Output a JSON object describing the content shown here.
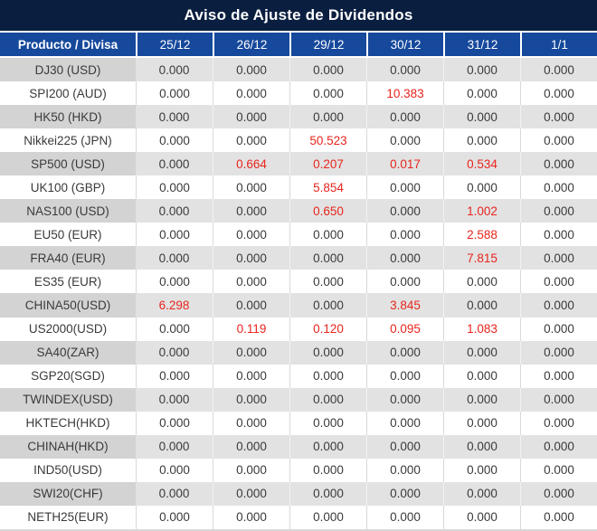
{
  "title": "Aviso de Ajuste de Dividendos",
  "table": {
    "product_header": "Producto / Divisa",
    "date_headers": [
      "25/12",
      "26/12",
      "29/12",
      "30/12",
      "31/12",
      "1/1"
    ],
    "rows": [
      {
        "product": "DJ30 (USD)",
        "values": [
          "0.000",
          "0.000",
          "0.000",
          "0.000",
          "0.000",
          "0.000"
        ],
        "red": [
          false,
          false,
          false,
          false,
          false,
          false
        ]
      },
      {
        "product": "SPI200 (AUD)",
        "values": [
          "0.000",
          "0.000",
          "0.000",
          "10.383",
          "0.000",
          "0.000"
        ],
        "red": [
          false,
          false,
          false,
          true,
          false,
          false
        ]
      },
      {
        "product": "HK50 (HKD)",
        "values": [
          "0.000",
          "0.000",
          "0.000",
          "0.000",
          "0.000",
          "0.000"
        ],
        "red": [
          false,
          false,
          false,
          false,
          false,
          false
        ]
      },
      {
        "product": "Nikkei225 (JPN)",
        "values": [
          "0.000",
          "0.000",
          "50.523",
          "0.000",
          "0.000",
          "0.000"
        ],
        "red": [
          false,
          false,
          true,
          false,
          false,
          false
        ]
      },
      {
        "product": "SP500 (USD)",
        "values": [
          "0.000",
          "0.664",
          "0.207",
          "0.017",
          "0.534",
          "0.000"
        ],
        "red": [
          false,
          true,
          true,
          true,
          true,
          false
        ]
      },
      {
        "product": "UK100 (GBP)",
        "values": [
          "0.000",
          "0.000",
          "5.854",
          "0.000",
          "0.000",
          "0.000"
        ],
        "red": [
          false,
          false,
          true,
          false,
          false,
          false
        ]
      },
      {
        "product": "NAS100 (USD)",
        "values": [
          "0.000",
          "0.000",
          "0.650",
          "0.000",
          "1.002",
          "0.000"
        ],
        "red": [
          false,
          false,
          true,
          false,
          true,
          false
        ]
      },
      {
        "product": "EU50 (EUR)",
        "values": [
          "0.000",
          "0.000",
          "0.000",
          "0.000",
          "2.588",
          "0.000"
        ],
        "red": [
          false,
          false,
          false,
          false,
          true,
          false
        ]
      },
      {
        "product": "FRA40 (EUR)",
        "values": [
          "0.000",
          "0.000",
          "0.000",
          "0.000",
          "7.815",
          "0.000"
        ],
        "red": [
          false,
          false,
          false,
          false,
          true,
          false
        ]
      },
      {
        "product": "ES35 (EUR)",
        "values": [
          "0.000",
          "0.000",
          "0.000",
          "0.000",
          "0.000",
          "0.000"
        ],
        "red": [
          false,
          false,
          false,
          false,
          false,
          false
        ]
      },
      {
        "product": "CHINA50(USD)",
        "values": [
          "6.298",
          "0.000",
          "0.000",
          "3.845",
          "0.000",
          "0.000"
        ],
        "red": [
          true,
          false,
          false,
          true,
          false,
          false
        ]
      },
      {
        "product": "US2000(USD)",
        "values": [
          "0.000",
          "0.119",
          "0.120",
          "0.095",
          "1.083",
          "0.000"
        ],
        "red": [
          false,
          true,
          true,
          true,
          true,
          false
        ]
      },
      {
        "product": "SA40(ZAR)",
        "values": [
          "0.000",
          "0.000",
          "0.000",
          "0.000",
          "0.000",
          "0.000"
        ],
        "red": [
          false,
          false,
          false,
          false,
          false,
          false
        ]
      },
      {
        "product": "SGP20(SGD)",
        "values": [
          "0.000",
          "0.000",
          "0.000",
          "0.000",
          "0.000",
          "0.000"
        ],
        "red": [
          false,
          false,
          false,
          false,
          false,
          false
        ]
      },
      {
        "product": "TWINDEX(USD)",
        "values": [
          "0.000",
          "0.000",
          "0.000",
          "0.000",
          "0.000",
          "0.000"
        ],
        "red": [
          false,
          false,
          false,
          false,
          false,
          false
        ]
      },
      {
        "product": "HKTECH(HKD)",
        "values": [
          "0.000",
          "0.000",
          "0.000",
          "0.000",
          "0.000",
          "0.000"
        ],
        "red": [
          false,
          false,
          false,
          false,
          false,
          false
        ]
      },
      {
        "product": "CHINAH(HKD)",
        "values": [
          "0.000",
          "0.000",
          "0.000",
          "0.000",
          "0.000",
          "0.000"
        ],
        "red": [
          false,
          false,
          false,
          false,
          false,
          false
        ]
      },
      {
        "product": "IND50(USD)",
        "values": [
          "0.000",
          "0.000",
          "0.000",
          "0.000",
          "0.000",
          "0.000"
        ],
        "red": [
          false,
          false,
          false,
          false,
          false,
          false
        ]
      },
      {
        "product": "SWI20(CHF)",
        "values": [
          "0.000",
          "0.000",
          "0.000",
          "0.000",
          "0.000",
          "0.000"
        ],
        "red": [
          false,
          false,
          false,
          false,
          false,
          false
        ]
      },
      {
        "product": "NETH25(EUR)",
        "values": [
          "0.000",
          "0.000",
          "0.000",
          "0.000",
          "0.000",
          "0.000"
        ],
        "red": [
          false,
          false,
          false,
          false,
          false,
          false
        ]
      }
    ]
  },
  "colors": {
    "title_bg": "#0a1e40",
    "header_bg": "#16499c",
    "row_gray_product": "#d3d3d3",
    "row_gray_value": "#e2e2e2",
    "divider": "#d9d9d9",
    "text": "#3a3a3a",
    "value_red": "#e8251d"
  }
}
